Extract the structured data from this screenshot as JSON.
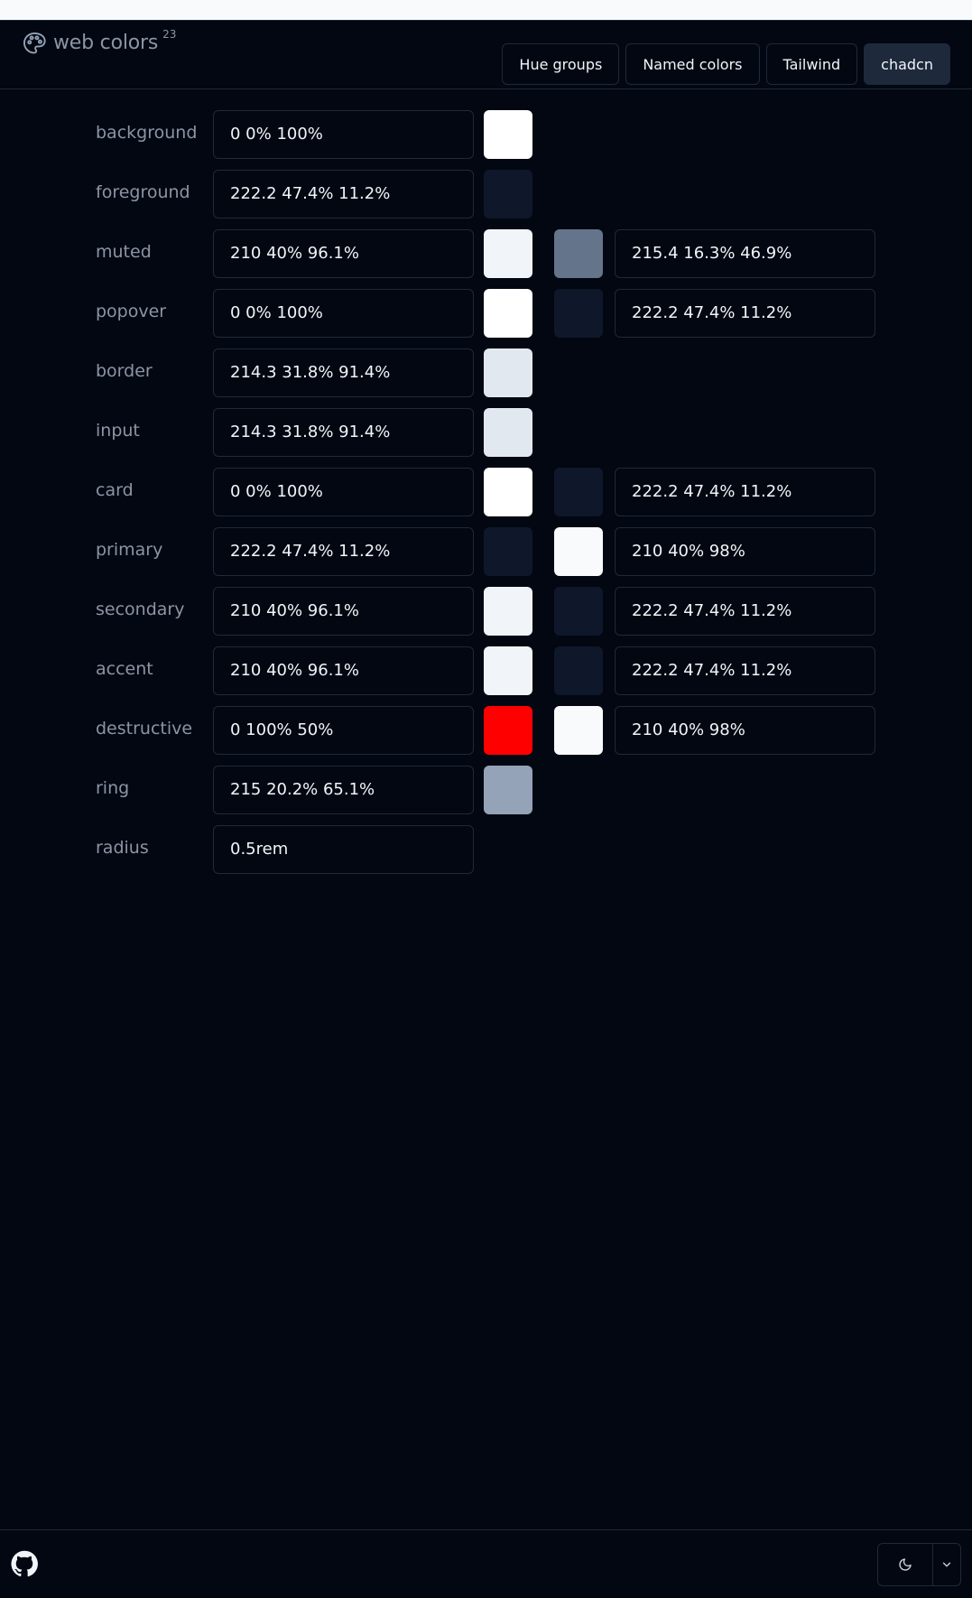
{
  "brand": {
    "name": "web colors",
    "superscript": "23"
  },
  "nav": [
    {
      "label": "Hue groups",
      "active": false
    },
    {
      "label": "Named colors",
      "active": false
    },
    {
      "label": "Tailwind",
      "active": false
    },
    {
      "label": "chadcn",
      "active": true
    }
  ],
  "rows": [
    {
      "name": "background",
      "value": "0 0% 100%",
      "color": "#ffffff"
    },
    {
      "name": "foreground",
      "value": "222.2 47.4% 11.2%",
      "color": "#0f172a"
    },
    {
      "name": "muted",
      "value": "210 40% 96.1%",
      "color": "#f1f5f9",
      "fg_value": "215.4 16.3% 46.9%",
      "fg_color": "#64748b"
    },
    {
      "name": "popover",
      "value": "0 0% 100%",
      "color": "#ffffff",
      "fg_value": "222.2 47.4% 11.2%",
      "fg_color": "#0f172a"
    },
    {
      "name": "border",
      "value": "214.3 31.8% 91.4%",
      "color": "#e2e8f0"
    },
    {
      "name": "input",
      "value": "214.3 31.8% 91.4%",
      "color": "#e2e8f0"
    },
    {
      "name": "card",
      "value": "0 0% 100%",
      "color": "#ffffff",
      "fg_value": "222.2 47.4% 11.2%",
      "fg_color": "#0f172a"
    },
    {
      "name": "primary",
      "value": "222.2 47.4% 11.2%",
      "color": "#0f172a",
      "fg_value": "210 40% 98%",
      "fg_color": "#f8fafc"
    },
    {
      "name": "secondary",
      "value": "210 40% 96.1%",
      "color": "#f1f5f9",
      "fg_value": "222.2 47.4% 11.2%",
      "fg_color": "#0f172a"
    },
    {
      "name": "accent",
      "value": "210 40% 96.1%",
      "color": "#f1f5f9",
      "fg_value": "222.2 47.4% 11.2%",
      "fg_color": "#0f172a"
    },
    {
      "name": "destructive",
      "value": "0 100% 50%",
      "color": "#ff0000",
      "fg_value": "210 40% 98%",
      "fg_color": "#f8fafc"
    },
    {
      "name": "ring",
      "value": "215 20.2% 65.1%",
      "color": "#94a3b8"
    },
    {
      "name": "radius",
      "value": "0.5rem"
    }
  ],
  "footer": {
    "github_icon": "github-icon",
    "theme_icon": "moon-icon",
    "menu_icon": "chevron-down-icon"
  }
}
